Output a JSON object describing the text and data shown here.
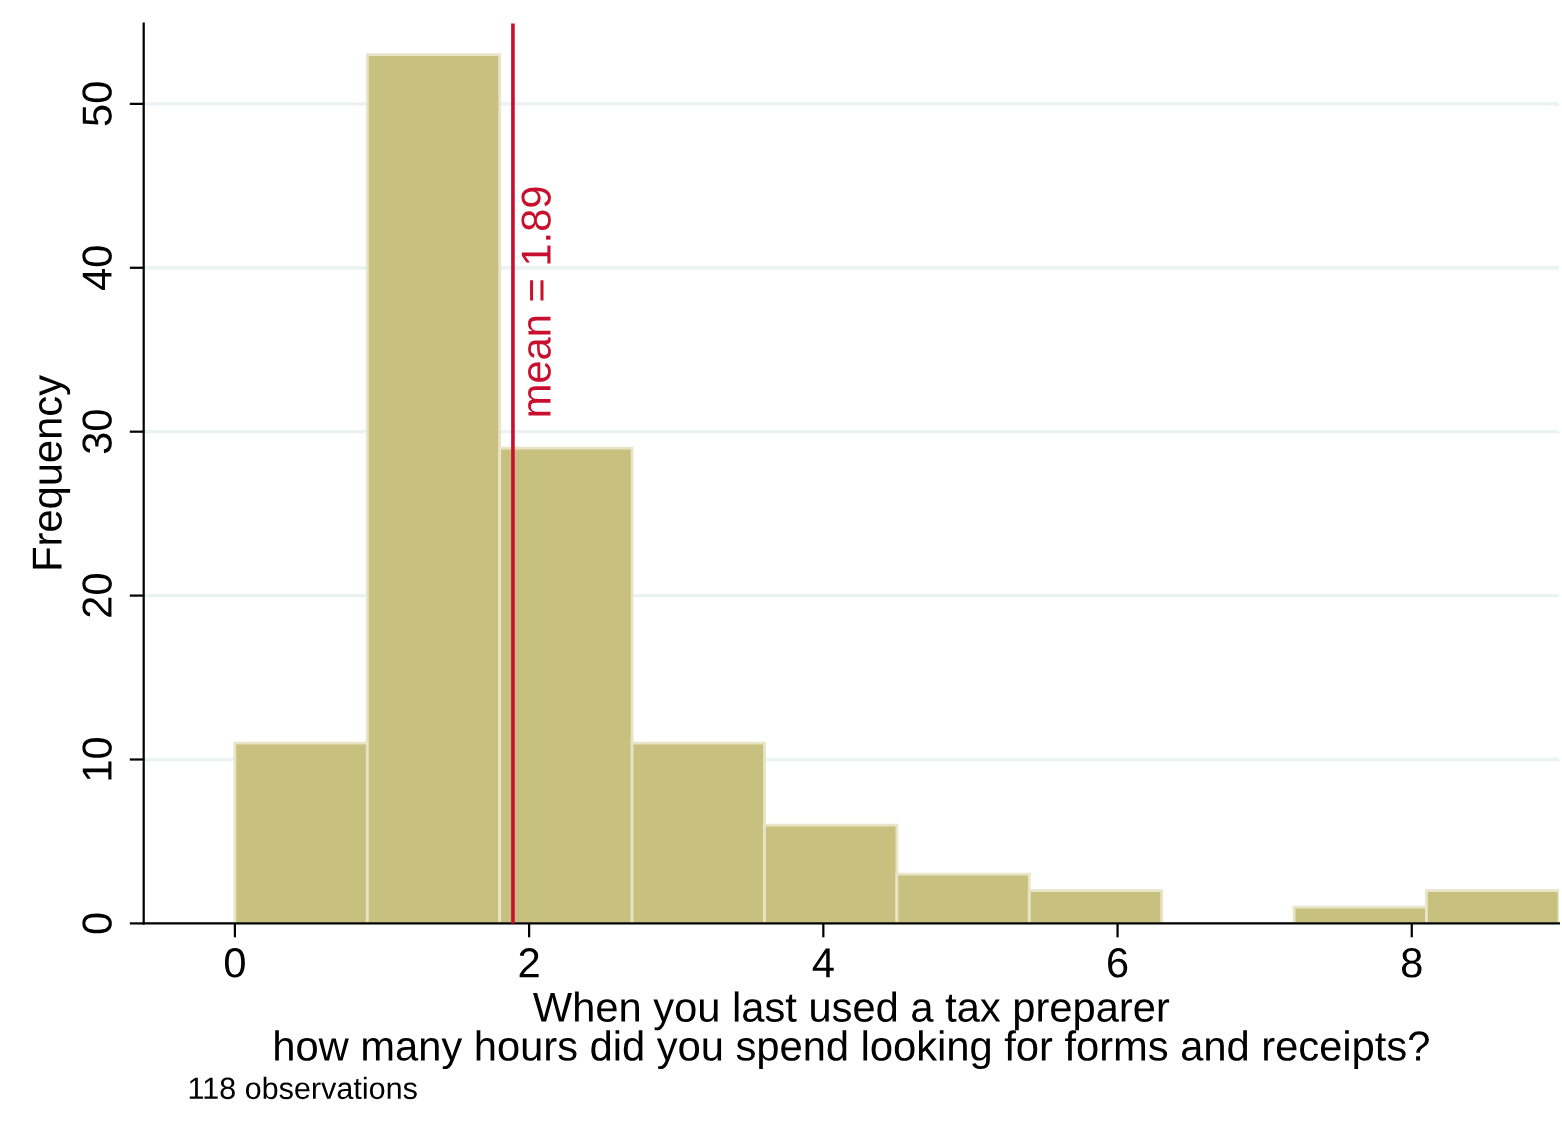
{
  "chart_data": {
    "type": "histogram",
    "xlabel": "When you last used a tax preparer\nhow many hours did you spend looking for forms and receipts?",
    "ylabel": "Frequency",
    "bins": [
      0,
      0.9,
      1.8,
      2.7,
      3.6,
      4.5,
      5.4,
      6.3,
      7.2,
      8.1,
      9.0
    ],
    "values": [
      11,
      53,
      29,
      11,
      6,
      3,
      2,
      0,
      1,
      2
    ],
    "color": "#c8c07e",
    "xlim": [
      -0.62,
      9.0
    ],
    "xticks": [
      0,
      2,
      4,
      6,
      8
    ],
    "ylim": [
      0,
      54.9
    ],
    "yticks": [
      0,
      10,
      20,
      30,
      40,
      50
    ],
    "grid": "y",
    "legend": false,
    "ref_lines": [
      {
        "axis": "x",
        "value": 1.89,
        "label": "mean = 1.89",
        "color": "#c8102e"
      }
    ],
    "annotations": [
      "118 observations"
    ]
  }
}
